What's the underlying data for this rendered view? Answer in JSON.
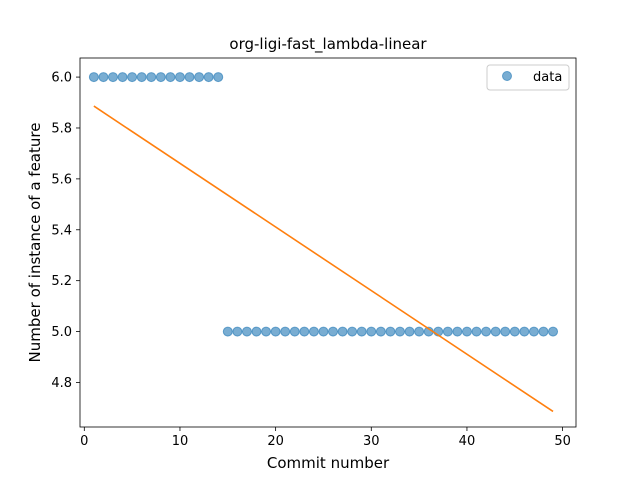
{
  "chart_data": {
    "type": "scatter",
    "title": "org-ligi-fast_lambda-linear",
    "xlabel": "Commit number",
    "ylabel": "Number of instance of a feature",
    "xlim": [
      -0.45,
      51.4
    ],
    "ylim": [
      4.625,
      6.075
    ],
    "xticks": [
      0,
      10,
      20,
      30,
      40,
      50
    ],
    "xtick_labels": [
      "0",
      "10",
      "20",
      "30",
      "40",
      "50"
    ],
    "yticks": [
      4.8,
      5.0,
      5.2,
      5.4,
      5.6,
      5.8,
      6.0
    ],
    "ytick_labels": [
      "4.8",
      "5.0",
      "5.2",
      "5.4",
      "5.6",
      "5.8",
      "6.0"
    ],
    "grid": false,
    "legend_position": "top-right",
    "series": [
      {
        "name": "data",
        "kind": "scatter",
        "color": "#1f77b4",
        "x": [
          1,
          2,
          3,
          4,
          5,
          6,
          7,
          8,
          9,
          10,
          11,
          12,
          13,
          14,
          15,
          16,
          17,
          18,
          19,
          20,
          21,
          22,
          23,
          24,
          25,
          26,
          27,
          28,
          29,
          30,
          31,
          32,
          33,
          34,
          35,
          36,
          37,
          38,
          39,
          40,
          41,
          42,
          43,
          44,
          45,
          46,
          47,
          48,
          49
        ],
        "y": [
          6,
          6,
          6,
          6,
          6,
          6,
          6,
          6,
          6,
          6,
          6,
          6,
          6,
          6,
          5,
          5,
          5,
          5,
          5,
          5,
          5,
          5,
          5,
          5,
          5,
          5,
          5,
          5,
          5,
          5,
          5,
          5,
          5,
          5,
          5,
          5,
          5,
          5,
          5,
          5,
          5,
          5,
          5,
          5,
          5,
          5,
          5,
          5,
          5
        ]
      },
      {
        "kind": "line",
        "color": "#ff7f0e",
        "x": [
          1,
          49
        ],
        "y": [
          5.886,
          4.686
        ]
      }
    ]
  }
}
